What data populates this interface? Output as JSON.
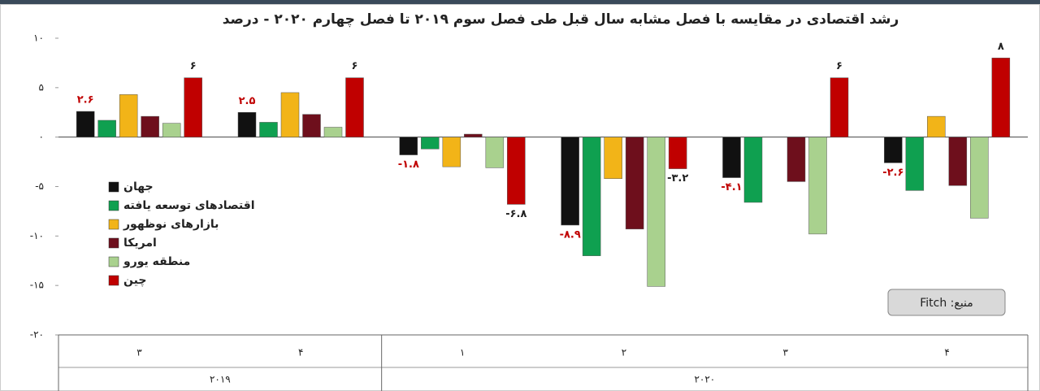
{
  "chart_data": {
    "type": "bar",
    "title": "رشد اقتصادی در مقایسه با فصل مشابه سال قبل طی فصل سوم ۲۰۱۹ تا فصل چهارم ۲۰۲۰ - درصد",
    "source": "منبع: Fitch",
    "categories": [
      "۳",
      "۴",
      "۱",
      "۲",
      "۳",
      "۴"
    ],
    "groups": [
      "۲۰۱۹",
      "۲۰۱۹",
      "۲۰۲۰",
      "۲۰۲۰",
      "۲۰۲۰",
      "۲۰۲۰"
    ],
    "series": [
      {
        "name": "جهان",
        "color": "#111111",
        "label_color": "#c00000",
        "values": [
          2.6,
          2.5,
          -1.8,
          -8.9,
          -4.1,
          -2.6
        ],
        "value_labels": [
          "۲.۶",
          "۲.۵",
          "-۱.۸",
          "-۸.۹",
          "-۴.۱",
          "-۲.۶"
        ]
      },
      {
        "name": "اقتصادهای توسعه یافته",
        "color": "#0fa050",
        "values": [
          1.7,
          1.5,
          -1.2,
          -12.0,
          -6.6,
          -5.4
        ]
      },
      {
        "name": "بازارهای نوظهور",
        "color": "#f2b418",
        "values": [
          4.3,
          4.5,
          -3.0,
          -4.2,
          0,
          2.1
        ]
      },
      {
        "name": "امریکا",
        "color": "#6e0f1c",
        "values": [
          2.1,
          2.3,
          0.3,
          -9.3,
          -4.5,
          -4.9
        ]
      },
      {
        "name": "منطقه یورو",
        "color": "#a9d18e",
        "values": [
          1.4,
          1.0,
          -3.1,
          -15.1,
          -9.8,
          -8.2
        ]
      },
      {
        "name": "چین",
        "color": "#c00000",
        "label_color": "#222222",
        "values": [
          6,
          6,
          -6.8,
          -3.2,
          6,
          8
        ],
        "value_labels": [
          "۶",
          "۶",
          "-۶.۸",
          "-۳.۲",
          "۶",
          "۸"
        ]
      }
    ],
    "ylim": [
      -20,
      10
    ],
    "yticks": [
      {
        "value": 10,
        "label": "۱۰"
      },
      {
        "value": 5,
        "label": "۵"
      },
      {
        "value": 0,
        "label": "۰"
      },
      {
        "value": -5,
        "label": "-۵"
      },
      {
        "value": -10,
        "label": "-۱۰"
      },
      {
        "value": -15,
        "label": "-۱۵"
      },
      {
        "value": -20,
        "label": "-۲۰"
      }
    ],
    "grid": false
  }
}
